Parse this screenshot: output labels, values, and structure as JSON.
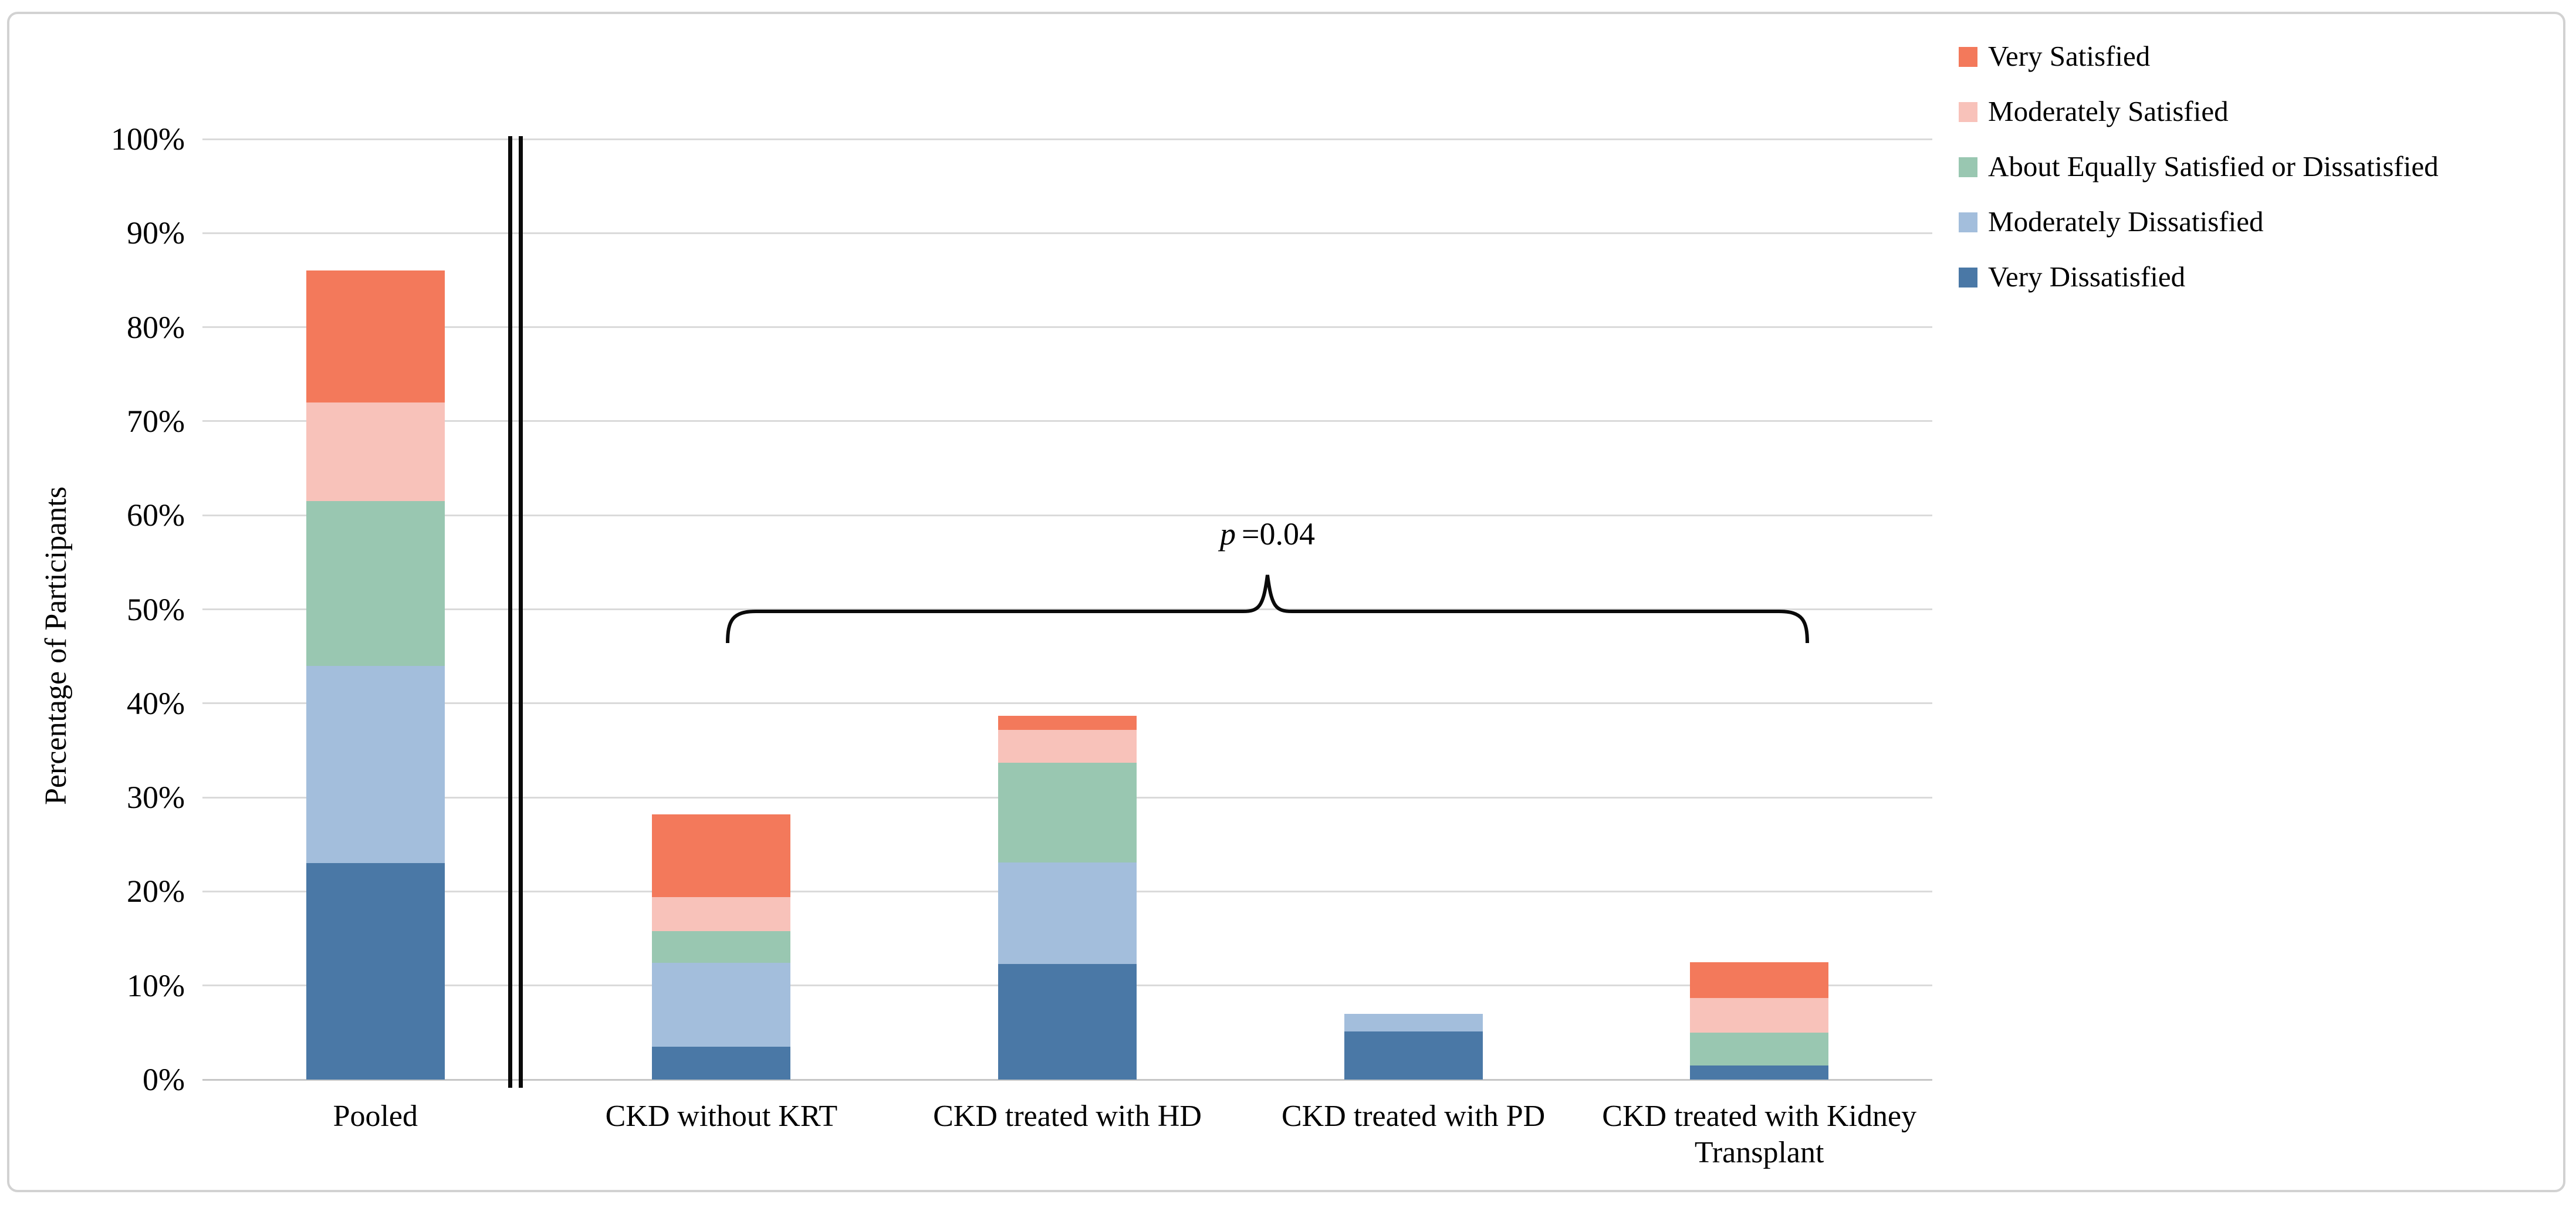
{
  "figure": {
    "background": "#ffffff",
    "border_color": "#d2d2d2",
    "gridline_color": "#dadada",
    "axis_line_color": "#c6c6c6",
    "text_color": "#000000"
  },
  "chart_data": {
    "type": "bar",
    "stacked": true,
    "title": "",
    "xlabel": "",
    "ylabel": "Percentage of Participants",
    "ylim": [
      0,
      100
    ],
    "ytick_step": 10,
    "ytick_suffix": "%",
    "grid": true,
    "categories": [
      "Pooled",
      "CKD without KRT",
      "CKD treated with HD",
      "CKD treated with PD",
      "CKD treated with Kidney Transplant"
    ],
    "series": [
      {
        "name": "Very Dissatisfied",
        "color": "#4A78A6",
        "values": [
          23.0,
          3.5,
          12.3,
          5.1,
          1.5
        ]
      },
      {
        "name": "Moderately Dissatisfied",
        "color": "#A3BEDC",
        "values": [
          21.0,
          8.9,
          10.8,
          1.9,
          0.0
        ]
      },
      {
        "name": "About Equally Satisfied or Dissatisfied",
        "color": "#99C7B1",
        "values": [
          17.5,
          3.4,
          10.6,
          0.0,
          3.5
        ]
      },
      {
        "name": "Moderately Satisfied",
        "color": "#F8C2BA",
        "values": [
          10.5,
          3.6,
          3.5,
          0.0,
          3.7
        ]
      },
      {
        "name": "Very Satisfied",
        "color": "#F3795B",
        "values": [
          14.0,
          8.8,
          1.5,
          0.0,
          3.8
        ]
      }
    ],
    "legend": {
      "position": "top-right",
      "order": [
        "Very Satisfied",
        "Moderately Satisfied",
        "About Equally Satisfied or Dissatisfied",
        "Moderately Dissatisfied",
        "Very Dissatisfied"
      ]
    },
    "annotations": [
      {
        "type": "brace",
        "label_italic": "p",
        "label_rest": "=0.04",
        "from_category": "CKD without KRT",
        "to_category": "CKD treated with Kidney Transplant",
        "brace_y_percent": 50
      }
    ],
    "separator": {
      "type": "double-line",
      "after_category": "Pooled"
    }
  }
}
